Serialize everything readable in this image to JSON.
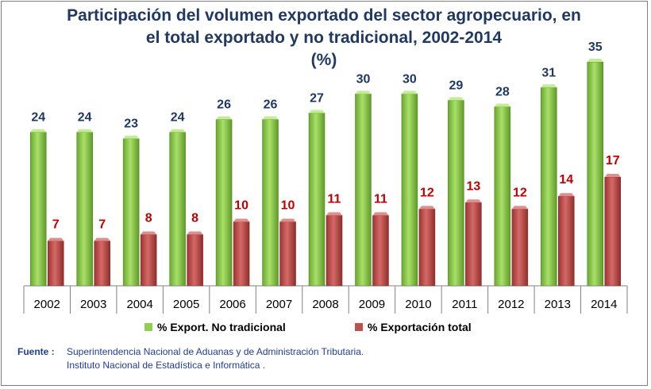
{
  "chart_data": {
    "type": "bar",
    "title_lines": [
      "Participación del volumen exportado del sector agropecuario, en",
      "el total exportado y no tradicional, 2002-2014",
      "(%)"
    ],
    "categories": [
      "2002",
      "2003",
      "2004",
      "2005",
      "2006",
      "2007",
      "2008",
      "2009",
      "2010",
      "2011",
      "2012",
      "2013",
      "2014"
    ],
    "series": [
      {
        "name": "% Export. No tradicional",
        "color": "#8fd14f",
        "label_color": "#1f3864",
        "values": [
          24,
          24,
          23,
          24,
          26,
          26,
          27,
          30,
          30,
          29,
          28,
          31,
          35
        ]
      },
      {
        "name": "% Exportación total",
        "color": "#c0504d",
        "label_color": "#c00000",
        "values": [
          7,
          7,
          8,
          8,
          10,
          10,
          11,
          11,
          12,
          13,
          12,
          14,
          17
        ]
      }
    ],
    "ylim": [
      0,
      36
    ],
    "grid": false,
    "legend_position": "bottom"
  },
  "source": {
    "label": "Fuente :",
    "lines": [
      "Superintendencia Nacional de Aduanas y de Administración Tributaria.",
      "Instituto  Nacional de Estadística e Informática ."
    ]
  }
}
